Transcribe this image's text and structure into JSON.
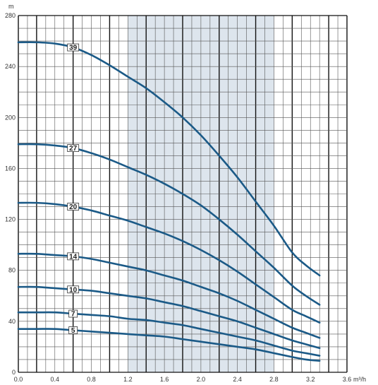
{
  "chart_data": {
    "type": "line",
    "title": "",
    "xlabel": "m³/h",
    "ylabel": "m",
    "xlim": [
      0,
      3.6
    ],
    "ylim": [
      0,
      280
    ],
    "x_ticks": [
      "0.0",
      "0.4",
      "0.8",
      "1.2",
      "1.6",
      "2.0",
      "2.4",
      "2.8",
      "3.2",
      "3.6"
    ],
    "y_ticks": [
      "0",
      "40",
      "80",
      "120",
      "160",
      "200",
      "240",
      "280"
    ],
    "shaded_range": [
      1.2,
      2.8
    ],
    "grid": true,
    "colors": {
      "curve": "#1b5a87",
      "shade": "#dde5ed",
      "grid_minor": "#555555",
      "grid_major": "#111111"
    },
    "series": [
      {
        "name": "39",
        "label_x": 0.6,
        "points": [
          [
            0,
            259
          ],
          [
            0.2,
            259
          ],
          [
            0.4,
            258
          ],
          [
            0.6,
            255
          ],
          [
            0.8,
            249
          ],
          [
            1.0,
            241
          ],
          [
            1.2,
            232
          ],
          [
            1.4,
            223
          ],
          [
            1.6,
            212
          ],
          [
            1.8,
            200
          ],
          [
            2.0,
            186
          ],
          [
            2.2,
            170
          ],
          [
            2.4,
            153
          ],
          [
            2.6,
            134
          ],
          [
            2.8,
            115
          ],
          [
            3.0,
            94
          ],
          [
            3.15,
            84
          ],
          [
            3.3,
            76
          ]
        ]
      },
      {
        "name": "27",
        "label_x": 0.6,
        "points": [
          [
            0,
            179
          ],
          [
            0.2,
            179
          ],
          [
            0.4,
            178
          ],
          [
            0.6,
            176
          ],
          [
            0.8,
            172
          ],
          [
            1.0,
            167
          ],
          [
            1.2,
            161
          ],
          [
            1.4,
            155
          ],
          [
            1.6,
            148
          ],
          [
            1.8,
            140
          ],
          [
            2.0,
            131
          ],
          [
            2.2,
            120
          ],
          [
            2.4,
            108
          ],
          [
            2.6,
            95
          ],
          [
            2.8,
            82
          ],
          [
            3.0,
            68
          ],
          [
            3.15,
            60
          ],
          [
            3.3,
            53
          ]
        ]
      },
      {
        "name": "20",
        "label_x": 0.6,
        "points": [
          [
            0,
            133
          ],
          [
            0.2,
            133
          ],
          [
            0.4,
            132
          ],
          [
            0.6,
            130
          ],
          [
            0.8,
            127
          ],
          [
            1.0,
            123
          ],
          [
            1.2,
            119
          ],
          [
            1.4,
            114
          ],
          [
            1.6,
            109
          ],
          [
            1.8,
            103
          ],
          [
            2.0,
            96
          ],
          [
            2.2,
            88
          ],
          [
            2.4,
            79
          ],
          [
            2.6,
            69
          ],
          [
            2.8,
            59
          ],
          [
            3.0,
            49
          ],
          [
            3.15,
            44
          ],
          [
            3.3,
            39
          ]
        ]
      },
      {
        "name": "14",
        "label_x": 0.6,
        "points": [
          [
            0,
            93
          ],
          [
            0.2,
            93
          ],
          [
            0.4,
            92
          ],
          [
            0.6,
            91
          ],
          [
            0.8,
            89
          ],
          [
            1.0,
            86
          ],
          [
            1.2,
            83
          ],
          [
            1.4,
            80
          ],
          [
            1.6,
            76
          ],
          [
            1.8,
            72
          ],
          [
            2.0,
            67
          ],
          [
            2.2,
            62
          ],
          [
            2.4,
            56
          ],
          [
            2.6,
            49
          ],
          [
            2.8,
            42
          ],
          [
            3.0,
            35
          ],
          [
            3.15,
            31
          ],
          [
            3.3,
            27
          ]
        ]
      },
      {
        "name": "10",
        "label_x": 0.6,
        "points": [
          [
            0,
            67
          ],
          [
            0.2,
            67
          ],
          [
            0.4,
            66
          ],
          [
            0.6,
            65
          ],
          [
            0.8,
            64
          ],
          [
            1.0,
            62
          ],
          [
            1.2,
            60
          ],
          [
            1.4,
            58
          ],
          [
            1.6,
            55
          ],
          [
            1.8,
            52
          ],
          [
            2.0,
            48
          ],
          [
            2.2,
            44
          ],
          [
            2.4,
            40
          ],
          [
            2.6,
            35
          ],
          [
            2.8,
            30
          ],
          [
            3.0,
            25
          ],
          [
            3.15,
            22
          ],
          [
            3.3,
            19
          ]
        ]
      },
      {
        "name": "7",
        "label_x": 0.6,
        "points": [
          [
            0,
            47
          ],
          [
            0.2,
            47
          ],
          [
            0.4,
            47
          ],
          [
            0.6,
            46
          ],
          [
            0.8,
            45
          ],
          [
            1.0,
            44
          ],
          [
            1.2,
            42
          ],
          [
            1.4,
            41
          ],
          [
            1.6,
            39
          ],
          [
            1.8,
            37
          ],
          [
            2.0,
            34
          ],
          [
            2.2,
            31
          ],
          [
            2.4,
            28
          ],
          [
            2.6,
            25
          ],
          [
            2.8,
            21
          ],
          [
            3.0,
            17
          ],
          [
            3.15,
            15
          ],
          [
            3.3,
            13
          ]
        ]
      },
      {
        "name": "5",
        "label_x": 0.6,
        "points": [
          [
            0,
            34
          ],
          [
            0.2,
            34
          ],
          [
            0.4,
            34
          ],
          [
            0.6,
            33
          ],
          [
            0.8,
            32
          ],
          [
            1.0,
            31
          ],
          [
            1.2,
            30
          ],
          [
            1.4,
            29
          ],
          [
            1.6,
            28
          ],
          [
            1.8,
            26
          ],
          [
            2.0,
            24
          ],
          [
            2.2,
            22
          ],
          [
            2.4,
            20
          ],
          [
            2.6,
            18
          ],
          [
            2.8,
            15
          ],
          [
            3.0,
            12
          ],
          [
            3.15,
            10
          ],
          [
            3.3,
            9
          ]
        ]
      }
    ]
  }
}
